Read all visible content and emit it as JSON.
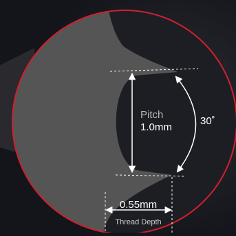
{
  "diagram": {
    "pitch_label": "Pitch",
    "pitch_value": "1.0mm",
    "angle_label": "30˚",
    "depth_value": "0.55mm",
    "depth_label": "Thread Depth"
  },
  "colors": {
    "background": "#14151a",
    "thread_profile": "#555555",
    "circle_outline": "#d0202c",
    "dimension_lines": "#ffffff",
    "pitch_label_text": "#b8b8b8"
  }
}
